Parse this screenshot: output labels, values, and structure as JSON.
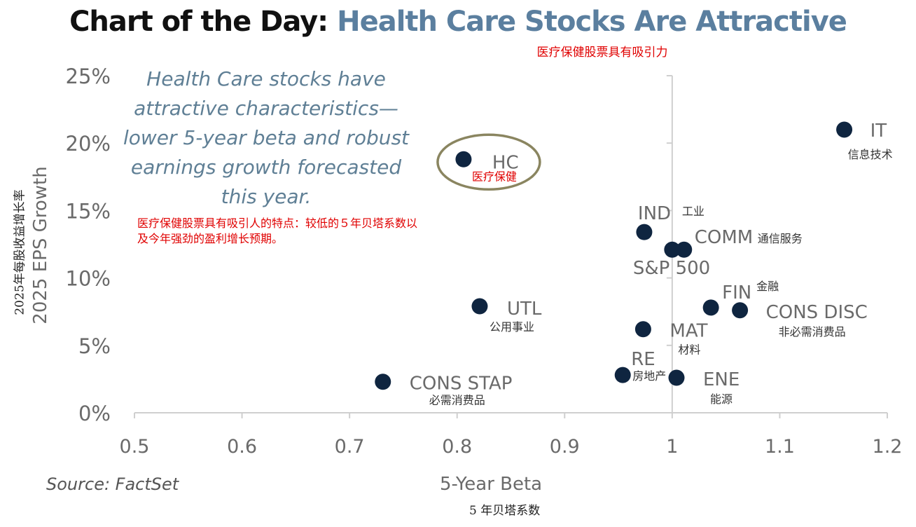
{
  "title": {
    "main": "Chart of the Day:",
    "sub": "Health Care Stocks Are Attractive",
    "cn": "医疗保健股票具有吸引力"
  },
  "callout": {
    "en": "Health Care stocks have attractive characteristics— lower 5-year beta and robust earnings growth forecasted this year.",
    "cn": "医疗保健股票具有吸引人的特点：较低的５年贝塔系数以及今年强劲的盈利增长预期。"
  },
  "source": "Source: FactSet",
  "chart_data": {
    "type": "scatter",
    "xlabel": "5-Year Beta",
    "xlabel_cn": "5 年贝塔系数",
    "ylabel": "2025 EPS Growth",
    "ylabel_cn": "2025年每股收益增长率",
    "xlim": [
      0.5,
      1.2
    ],
    "ylim": [
      0,
      25
    ],
    "x_ticks": [
      "0.5",
      "0.6",
      "0.7",
      "0.8",
      "0.9",
      "1",
      "1.1",
      "1.2"
    ],
    "y_ticks": [
      "0%",
      "5%",
      "10%",
      "15%",
      "20%",
      "25%"
    ],
    "reference_line_x": 1.0,
    "highlight": "HC",
    "colors": {
      "point": "#0f2540",
      "label": "#6a6a6a",
      "label_cn": "#333333",
      "highlight_label_cn": "#e00000",
      "ellipse": "#8a8560",
      "axis": "#cfcfcf"
    },
    "points": [
      {
        "label": "IT",
        "label_cn": "信息技术",
        "x": 1.16,
        "y": 21.0
      },
      {
        "label": "HC",
        "label_cn": "医疗保健",
        "x": 0.806,
        "y": 18.8
      },
      {
        "label": "IND",
        "label_cn": "工业",
        "x": 0.974,
        "y": 13.4
      },
      {
        "label": "COMM",
        "label_cn": "通信服务",
        "x": 1.011,
        "y": 12.1
      },
      {
        "label": "S&P 500",
        "label_cn": "",
        "x": 1.0,
        "y": 12.1
      },
      {
        "label": "FIN",
        "label_cn": "金融",
        "x": 1.036,
        "y": 7.8
      },
      {
        "label": "CONS DISC",
        "label_cn": "非必需消费品",
        "x": 1.063,
        "y": 7.6
      },
      {
        "label": "UTL",
        "label_cn": "公用事业",
        "x": 0.821,
        "y": 7.9
      },
      {
        "label": "MAT",
        "label_cn": "材料",
        "x": 0.973,
        "y": 6.2
      },
      {
        "label": "RE",
        "label_cn": "房地产",
        "x": 0.954,
        "y": 2.8
      },
      {
        "label": "ENE",
        "label_cn": "能源",
        "x": 1.004,
        "y": 2.6
      },
      {
        "label": "CONS STAP",
        "label_cn": "必需消费品",
        "x": 0.731,
        "y": 2.3
      }
    ]
  }
}
